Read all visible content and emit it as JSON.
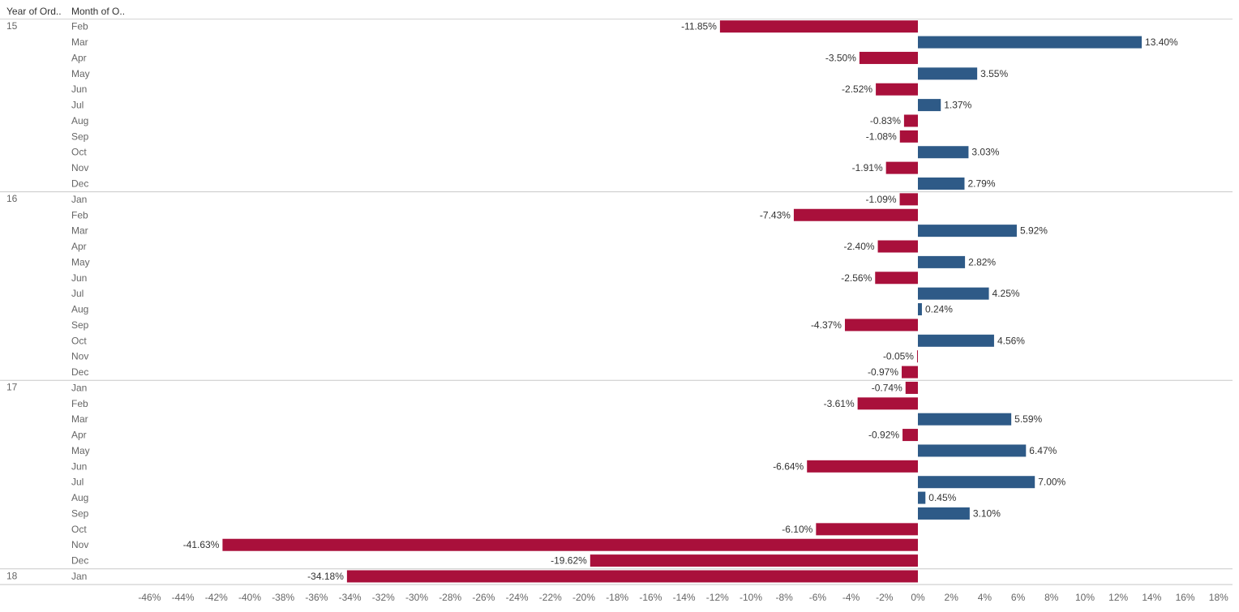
{
  "header": {
    "year_label": "Year of Ord..",
    "month_label": "Month of O.."
  },
  "colors": {
    "positive": "#2E5A87",
    "negative": "#A9103B"
  },
  "chart_data": {
    "type": "bar",
    "orientation": "horizontal",
    "value_format": "percent (2 decimals)",
    "xlim": [
      -46,
      18
    ],
    "x_ticks": [
      "-46%",
      "-44%",
      "-42%",
      "-40%",
      "-38%",
      "-36%",
      "-34%",
      "-32%",
      "-30%",
      "-28%",
      "-26%",
      "-24%",
      "-22%",
      "-20%",
      "-18%",
      "-16%",
      "-14%",
      "-12%",
      "-10%",
      "-8%",
      "-6%",
      "-4%",
      "-2%",
      "0%",
      "2%",
      "4%",
      "6%",
      "8%",
      "10%",
      "12%",
      "14%",
      "16%",
      "18%"
    ],
    "groups": [
      {
        "year": "15",
        "rows": [
          {
            "month": "Feb",
            "value": -11.85,
            "label": "-11.85%"
          },
          {
            "month": "Mar",
            "value": 13.4,
            "label": "13.40%"
          },
          {
            "month": "Apr",
            "value": -3.5,
            "label": "-3.50%"
          },
          {
            "month": "May",
            "value": 3.55,
            "label": "3.55%"
          },
          {
            "month": "Jun",
            "value": -2.52,
            "label": "-2.52%"
          },
          {
            "month": "Jul",
            "value": 1.37,
            "label": "1.37%"
          },
          {
            "month": "Aug",
            "value": -0.83,
            "label": "-0.83%"
          },
          {
            "month": "Sep",
            "value": -1.08,
            "label": "-1.08%"
          },
          {
            "month": "Oct",
            "value": 3.03,
            "label": "3.03%"
          },
          {
            "month": "Nov",
            "value": -1.91,
            "label": "-1.91%"
          },
          {
            "month": "Dec",
            "value": 2.79,
            "label": "2.79%"
          }
        ]
      },
      {
        "year": "16",
        "rows": [
          {
            "month": "Jan",
            "value": -1.09,
            "label": "-1.09%"
          },
          {
            "month": "Feb",
            "value": -7.43,
            "label": "-7.43%"
          },
          {
            "month": "Mar",
            "value": 5.92,
            "label": "5.92%"
          },
          {
            "month": "Apr",
            "value": -2.4,
            "label": "-2.40%"
          },
          {
            "month": "May",
            "value": 2.82,
            "label": "2.82%"
          },
          {
            "month": "Jun",
            "value": -2.56,
            "label": "-2.56%"
          },
          {
            "month": "Jul",
            "value": 4.25,
            "label": "4.25%"
          },
          {
            "month": "Aug",
            "value": 0.24,
            "label": "0.24%"
          },
          {
            "month": "Sep",
            "value": -4.37,
            "label": "-4.37%"
          },
          {
            "month": "Oct",
            "value": 4.56,
            "label": "4.56%"
          },
          {
            "month": "Nov",
            "value": -0.05,
            "label": "-0.05%"
          },
          {
            "month": "Dec",
            "value": -0.97,
            "label": "-0.97%"
          }
        ]
      },
      {
        "year": "17",
        "rows": [
          {
            "month": "Jan",
            "value": -0.74,
            "label": "-0.74%"
          },
          {
            "month": "Feb",
            "value": -3.61,
            "label": "-3.61%"
          },
          {
            "month": "Mar",
            "value": 5.59,
            "label": "5.59%"
          },
          {
            "month": "Apr",
            "value": -0.92,
            "label": "-0.92%"
          },
          {
            "month": "May",
            "value": 6.47,
            "label": "6.47%"
          },
          {
            "month": "Jun",
            "value": -6.64,
            "label": "-6.64%"
          },
          {
            "month": "Jul",
            "value": 7.0,
            "label": "7.00%"
          },
          {
            "month": "Aug",
            "value": 0.45,
            "label": "0.45%"
          },
          {
            "month": "Sep",
            "value": 3.1,
            "label": "3.10%"
          },
          {
            "month": "Oct",
            "value": -6.1,
            "label": "-6.10%"
          },
          {
            "month": "Nov",
            "value": -41.63,
            "label": "-41.63%"
          },
          {
            "month": "Dec",
            "value": -19.62,
            "label": "-19.62%"
          }
        ]
      },
      {
        "year": "18",
        "rows": [
          {
            "month": "Jan",
            "value": -34.18,
            "label": "-34.18%"
          }
        ]
      }
    ]
  }
}
